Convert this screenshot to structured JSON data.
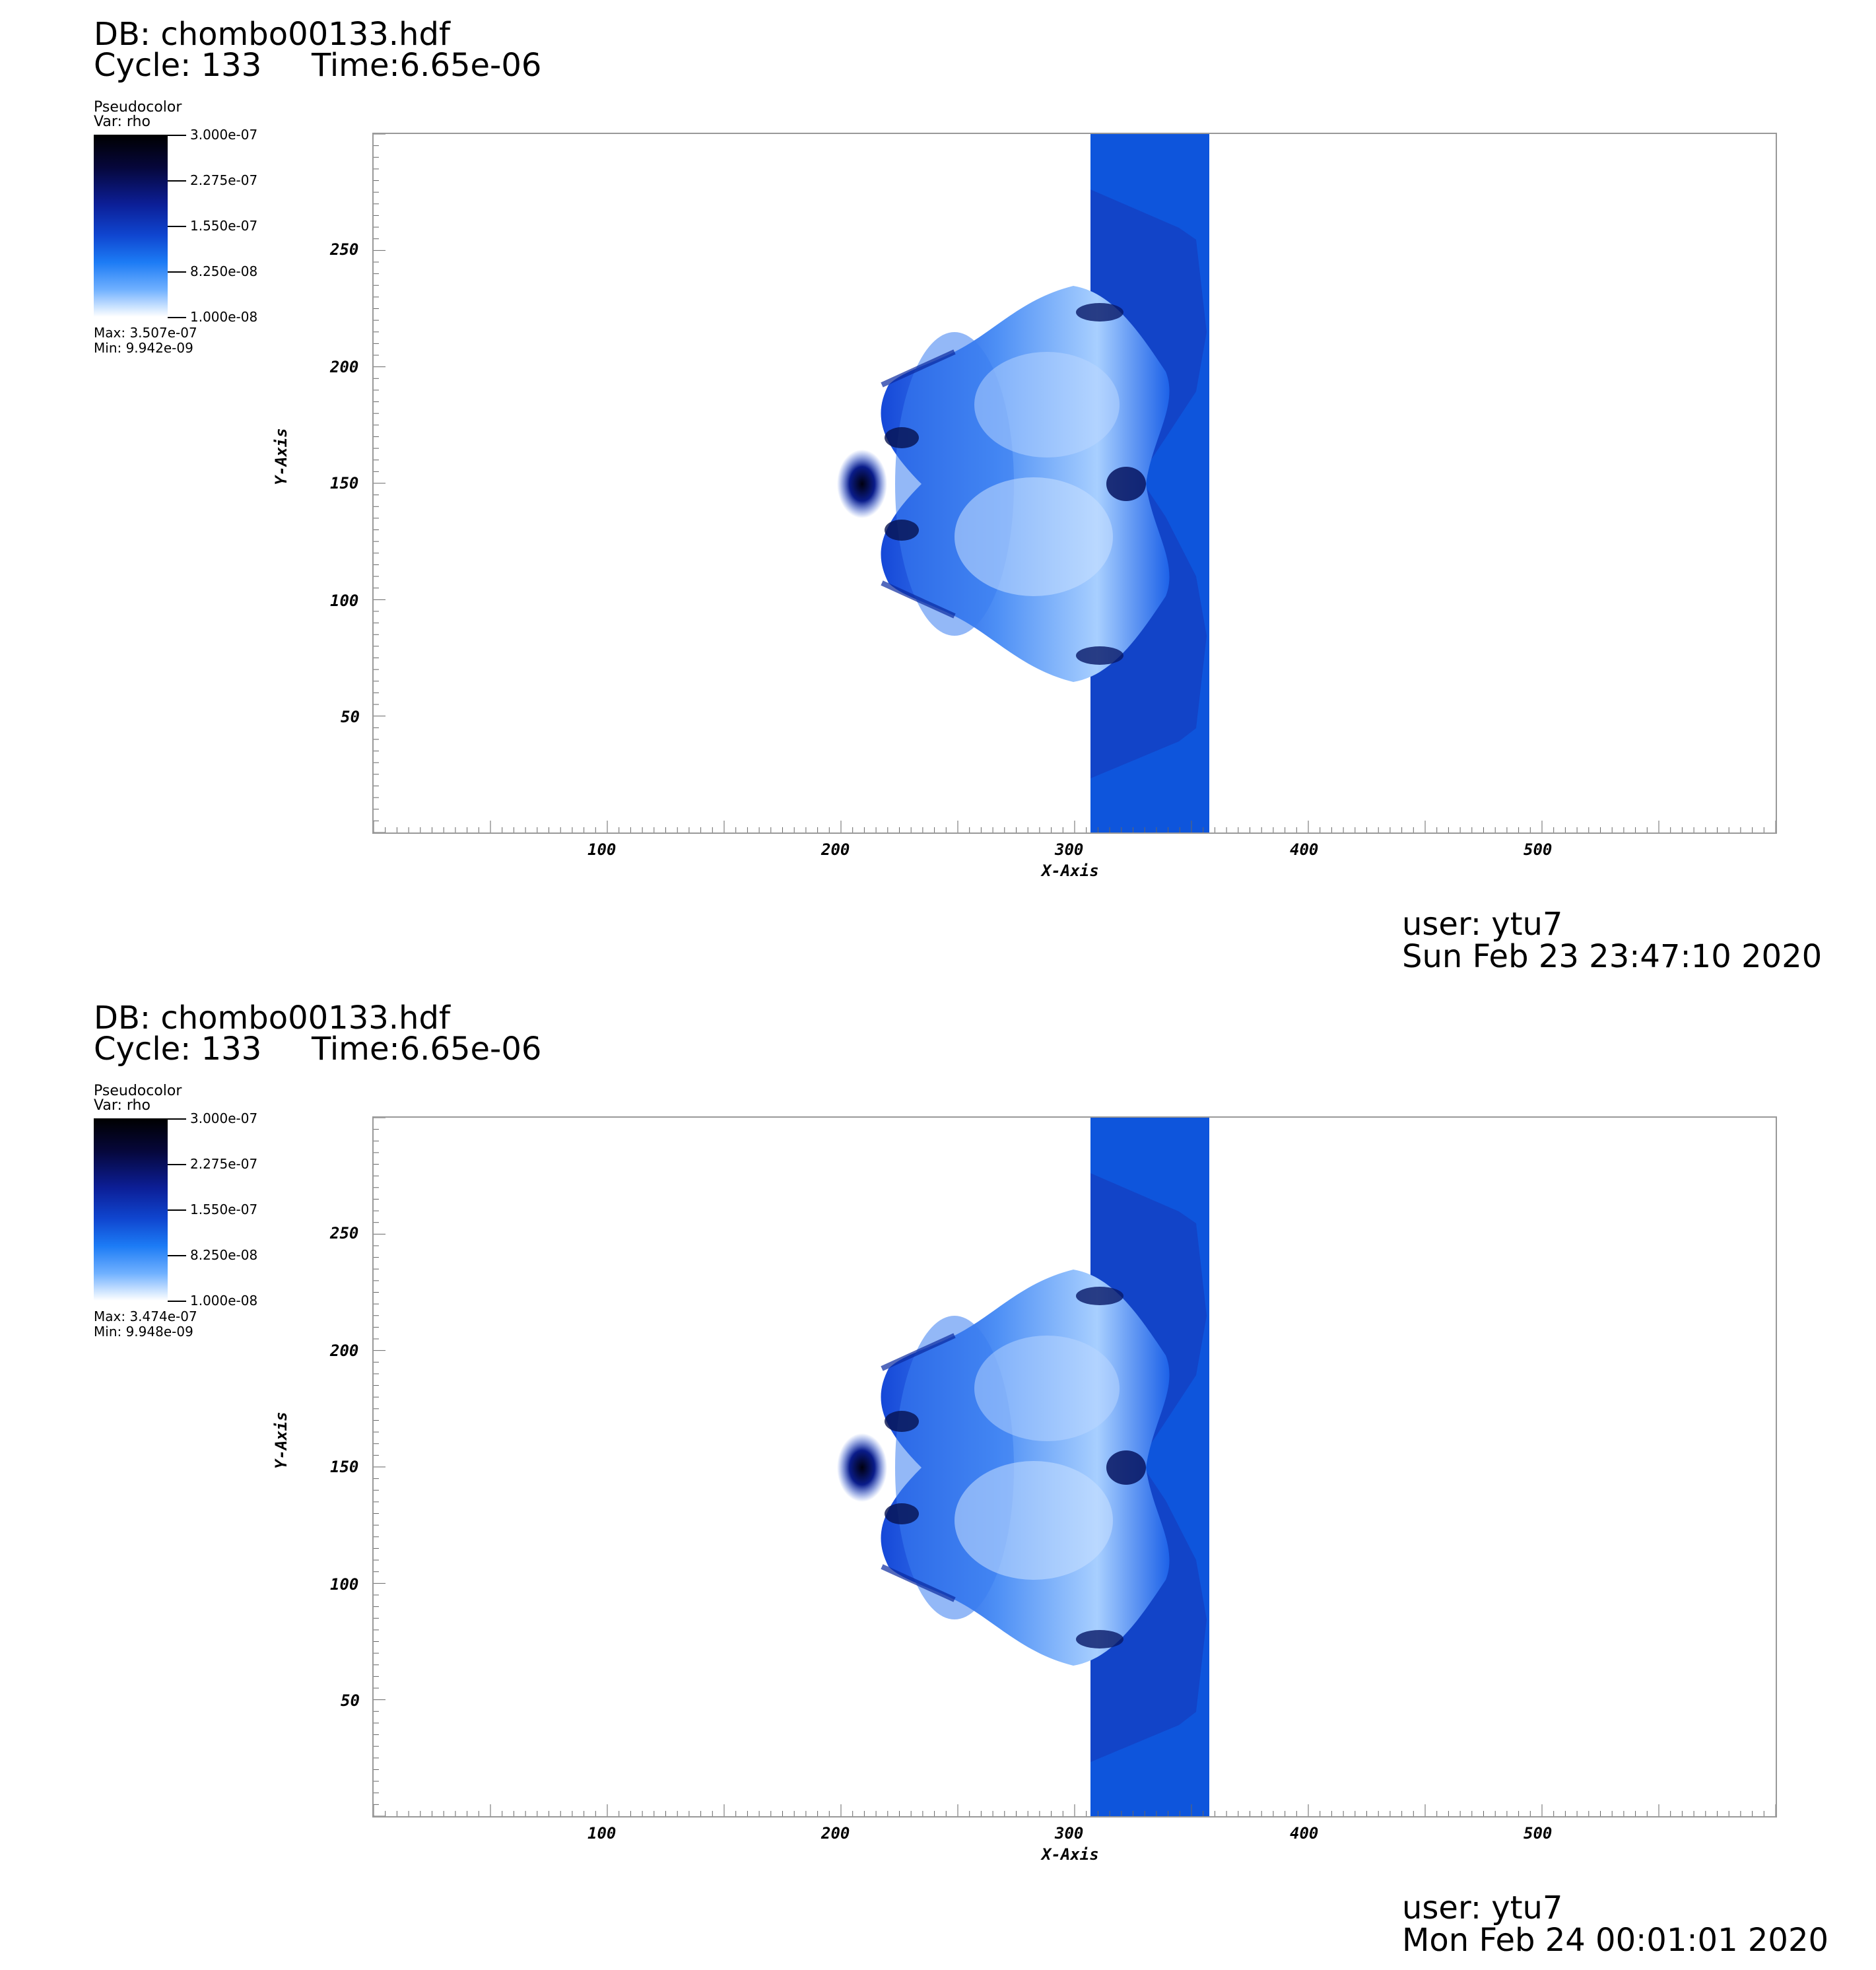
{
  "panels": [
    {
      "db": "DB: chombo00133.hdf",
      "cycle": "Cycle: 133",
      "time": "Time:6.65e-06",
      "legend": {
        "title": "Pseudocolor",
        "var": "Var: rho",
        "ticks": [
          "3.000e-07",
          "2.275e-07",
          "1.550e-07",
          "8.250e-08",
          "1.000e-08"
        ],
        "max": "Max:  3.507e-07",
        "min": "Min:  9.942e-09"
      },
      "x_ticks": [
        "100",
        "200",
        "300",
        "400",
        "500"
      ],
      "y_ticks": [
        "250",
        "200",
        "150",
        "100",
        "50"
      ],
      "x_title": "X-Axis",
      "y_title": "Y-Axis",
      "user": "user: ytu7",
      "date": "Sun Feb 23 23:47:10 2020"
    },
    {
      "db": "DB: chombo00133.hdf",
      "cycle": "Cycle: 133",
      "time": "Time:6.65e-06",
      "legend": {
        "title": "Pseudocolor",
        "var": "Var: rho",
        "ticks": [
          "3.000e-07",
          "2.275e-07",
          "1.550e-07",
          "8.250e-08",
          "1.000e-08"
        ],
        "max": "Max:  3.474e-07",
        "min": "Min:  9.948e-09"
      },
      "x_ticks": [
        "100",
        "200",
        "300",
        "400",
        "500"
      ],
      "y_ticks": [
        "250",
        "200",
        "150",
        "100",
        "50"
      ],
      "x_title": "X-Axis",
      "y_title": "Y-Axis",
      "user": "user: ytu7",
      "date": "Mon Feb 24 00:01:01 2020"
    }
  ],
  "colors": {
    "colormap_top": "#000000",
    "colormap_mid": "#0f45cf",
    "colormap_bottom": "#ffffff",
    "slab": "#0e55dc"
  }
}
